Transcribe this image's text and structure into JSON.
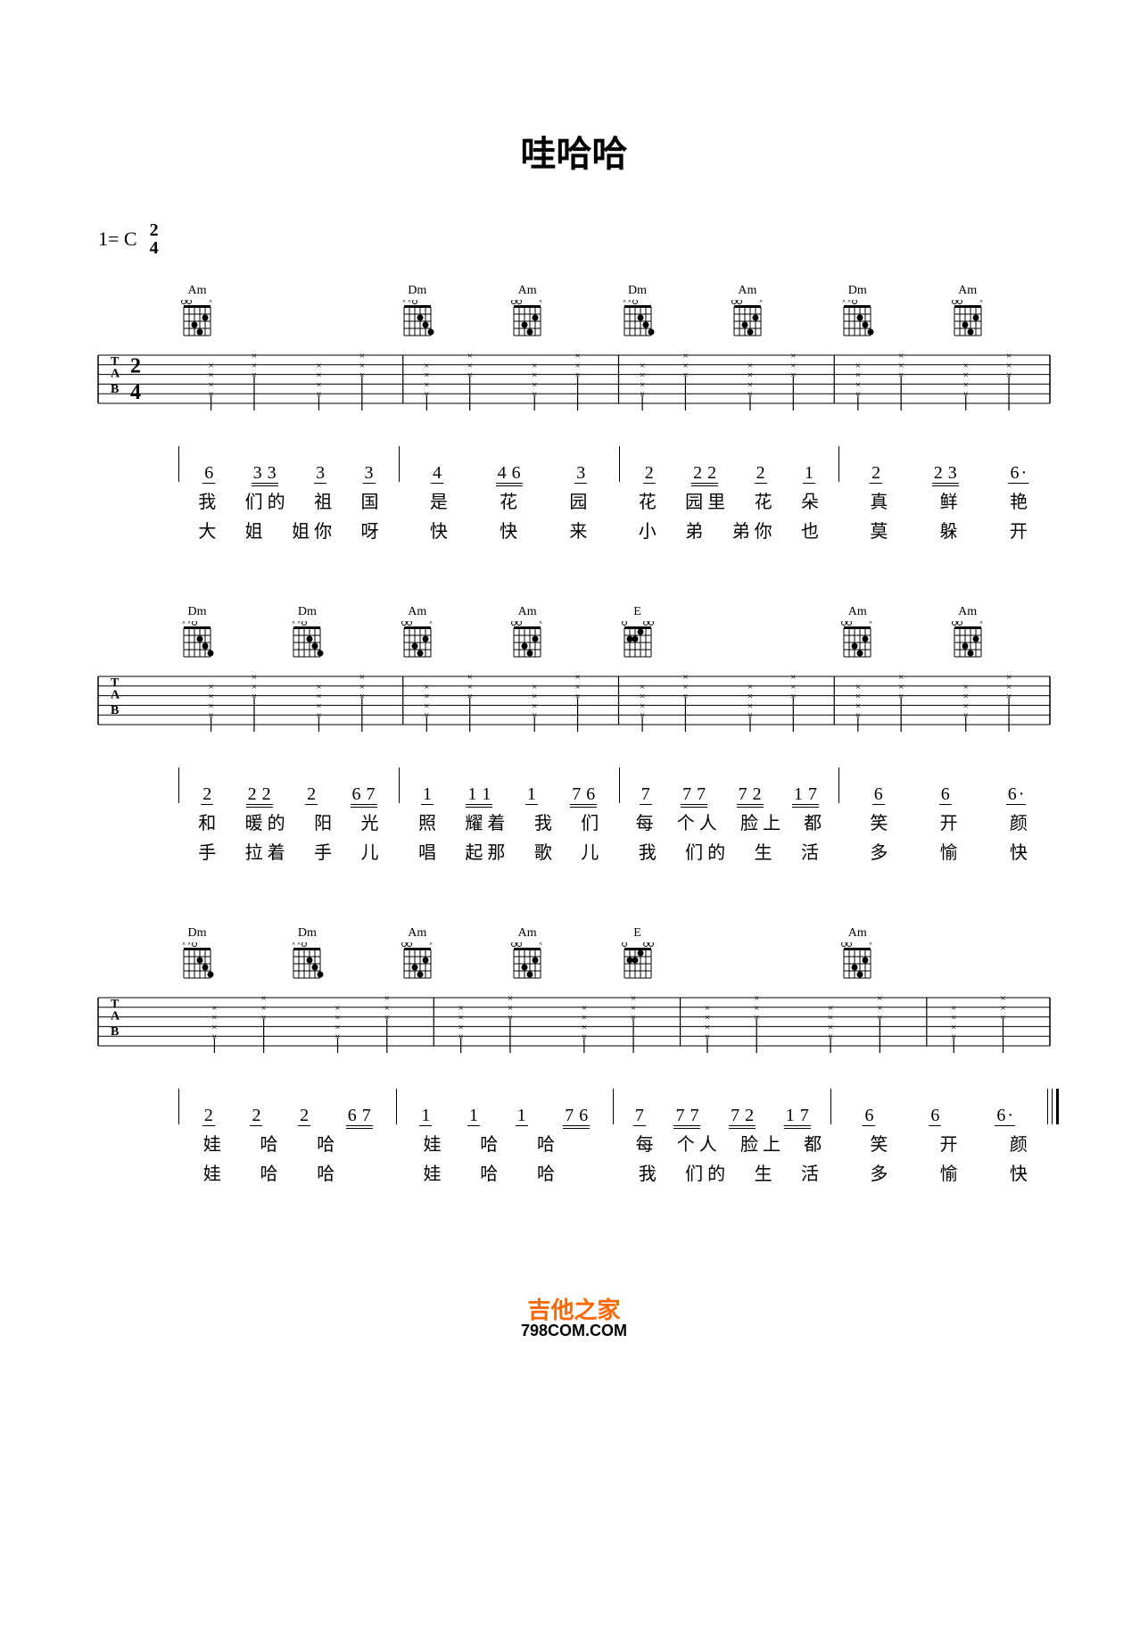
{
  "title": "哇哈哈",
  "keySignature": "1= C",
  "timeSigTop": "2",
  "timeSigBottom": "4",
  "watermark": {
    "line1": "吉他之家",
    "line2": "798COM.COM"
  },
  "chords": {
    "Am": {
      "name": "Am",
      "dots": [
        [
          2,
          2
        ],
        [
          3,
          4
        ],
        [
          4,
          3
        ]
      ],
      "muted": [
        1
      ],
      "open": [
        5,
        6
      ]
    },
    "Dm": {
      "name": "Dm",
      "dots": [
        [
          2,
          3
        ],
        [
          3,
          2
        ],
        [
          4,
          1
        ]
      ],
      "muted": [
        5,
        6
      ],
      "open": [
        4
      ]
    },
    "E": {
      "name": "E",
      "dots": [
        [
          2,
          5
        ],
        [
          2,
          4
        ],
        [
          1,
          3
        ]
      ],
      "muted": [],
      "open": [
        1,
        2,
        6
      ]
    }
  },
  "systems": [
    {
      "chordSlots": [
        "Am",
        "",
        "Dm",
        "Am",
        "Dm",
        "Am",
        "Dm",
        "Am"
      ],
      "slotsCount": 8,
      "strumBeats": 8,
      "jianpu": [
        [
          [
            "6"
          ],
          [
            "3",
            "3"
          ],
          [
            "3"
          ],
          [
            "3"
          ]
        ],
        [
          [
            "4"
          ],
          [
            "4",
            "6"
          ],
          [
            "3"
          ]
        ],
        [
          [
            "2"
          ],
          [
            "2",
            "2"
          ],
          [
            "2"
          ],
          [
            "1"
          ]
        ],
        [
          [
            "2"
          ],
          [
            "2",
            "3"
          ],
          [
            "6·"
          ]
        ]
      ],
      "ties": [
        [
          1,
          1,
          2
        ],
        [
          3,
          1,
          2
        ]
      ],
      "lyrics1": [
        [
          "我",
          "们 的",
          "祖",
          "国"
        ],
        [
          "是",
          "花",
          "园"
        ],
        [
          "花",
          "园 里",
          "花",
          "朵"
        ],
        [
          "真",
          "鲜",
          "艳"
        ]
      ],
      "lyrics2": [
        [
          "大",
          "姐",
          "姐 你",
          "呀"
        ],
        [
          "快",
          "快",
          "来"
        ],
        [
          "小",
          "弟",
          "弟 你",
          "也"
        ],
        [
          "莫",
          "躲",
          "开"
        ]
      ]
    },
    {
      "chordSlots": [
        "Dm",
        "Dm",
        "Am",
        "Am",
        "E",
        "",
        "Am",
        "Am"
      ],
      "slotsCount": 8,
      "strumBeats": 8,
      "jianpu": [
        [
          [
            "2"
          ],
          [
            "2",
            "2"
          ],
          [
            "2"
          ],
          [
            "6",
            "7"
          ]
        ],
        [
          [
            "1"
          ],
          [
            "1",
            "1"
          ],
          [
            "1"
          ],
          [
            "7",
            "6"
          ]
        ],
        [
          [
            "7"
          ],
          [
            "7",
            "7"
          ],
          [
            "7",
            "2"
          ],
          [
            "1",
            "7"
          ]
        ],
        [
          [
            "6"
          ],
          [
            "6"
          ],
          [
            "6·"
          ]
        ]
      ],
      "ties": [
        [
          0,
          3,
          4
        ],
        [
          1,
          3,
          4
        ],
        [
          2,
          2,
          3
        ]
      ],
      "lyrics1": [
        [
          "和",
          "暖 的",
          "阳",
          "光"
        ],
        [
          "照",
          "耀 着",
          "我",
          "们"
        ],
        [
          "每",
          "个 人",
          "脸 上",
          "都"
        ],
        [
          "笑",
          "开",
          "颜"
        ]
      ],
      "lyrics2": [
        [
          "手",
          "拉 着",
          "手",
          "儿"
        ],
        [
          "唱",
          "起 那",
          "歌",
          "儿"
        ],
        [
          "我",
          "们 的",
          "生",
          "活"
        ],
        [
          "多",
          "愉",
          "快"
        ]
      ]
    },
    {
      "chordSlots": [
        "Dm",
        "Dm",
        "Am",
        "Am",
        "E",
        "",
        "Am",
        ""
      ],
      "slotsCount": 8,
      "strumBeats": 7,
      "jianpu": [
        [
          [
            "2"
          ],
          [
            "2"
          ],
          [
            "2"
          ],
          [
            "6",
            "7"
          ]
        ],
        [
          [
            "1"
          ],
          [
            "1"
          ],
          [
            "1"
          ],
          [
            "7",
            "6"
          ]
        ],
        [
          [
            "7"
          ],
          [
            "7",
            "7"
          ],
          [
            "7",
            "2"
          ],
          [
            "1",
            "7"
          ]
        ],
        [
          [
            "6"
          ],
          [
            "6"
          ],
          [
            "6·"
          ]
        ]
      ],
      "ties": [
        [
          0,
          2,
          3
        ],
        [
          1,
          2,
          3
        ],
        [
          2,
          2,
          3
        ]
      ],
      "lyrics1": [
        [
          "娃",
          "哈",
          "哈",
          ""
        ],
        [
          "娃",
          "哈",
          "哈",
          ""
        ],
        [
          "每",
          "个 人",
          "脸 上",
          "都"
        ],
        [
          "笑",
          "开",
          "颜"
        ]
      ],
      "lyrics2": [
        [
          "娃",
          "哈",
          "哈",
          ""
        ],
        [
          "娃",
          "哈",
          "哈",
          ""
        ],
        [
          "我",
          "们 的",
          "生",
          "活"
        ],
        [
          "多",
          "愉",
          "快"
        ]
      ],
      "endBar": true
    }
  ]
}
